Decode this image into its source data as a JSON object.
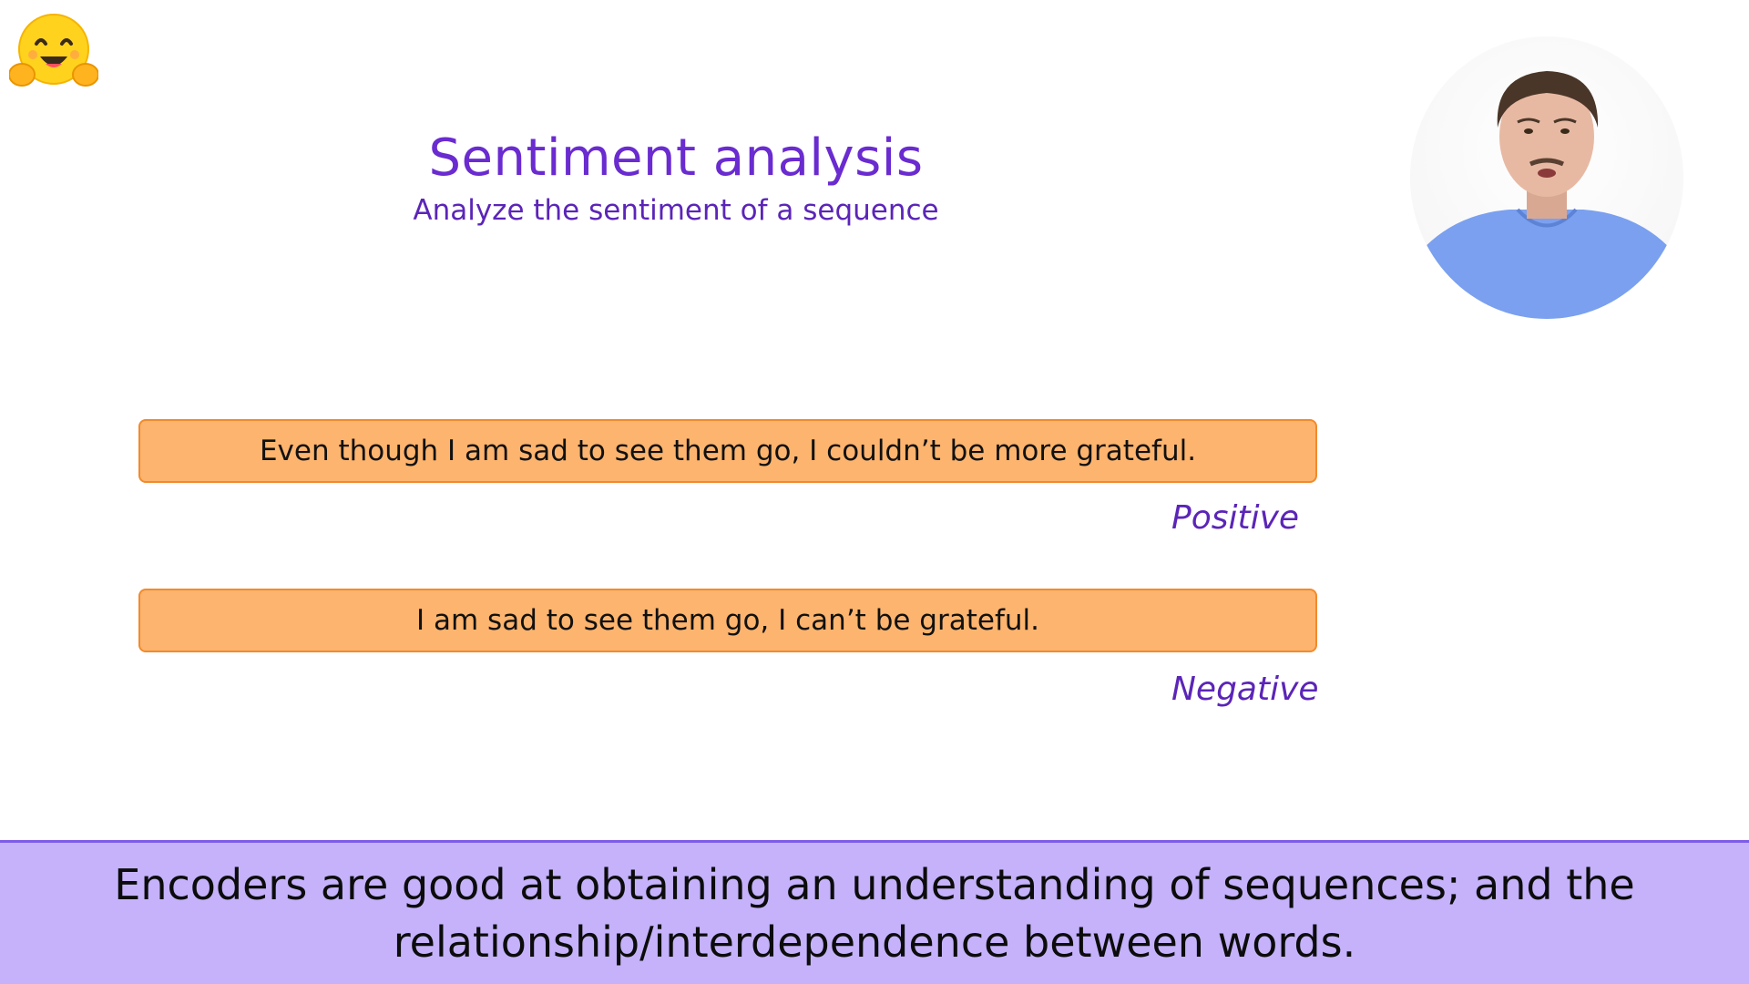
{
  "slide": {
    "title": "Sentiment analysis",
    "subtitle": "Analyze the sentiment of a sequence"
  },
  "examples": [
    {
      "sentence": "Even though I am sad to see them go, I couldn’t be more grateful.",
      "label": "Positive"
    },
    {
      "sentence": "I am sad to see them go, I can’t be grateful.",
      "label": "Negative"
    }
  ],
  "caption": {
    "text": "Encoders are good at obtaining an understanding of sequences; and the relationship/interdependence between words."
  },
  "icons": {
    "logo": "hugging-face-logo-icon",
    "presenter": "presenter-video"
  },
  "colors": {
    "title": "#6a2bd0",
    "box_fill": "#fdb46e",
    "box_border": "#f28a2c",
    "caption_bg": "#c5b2fb",
    "caption_border": "#7d5ce8"
  }
}
